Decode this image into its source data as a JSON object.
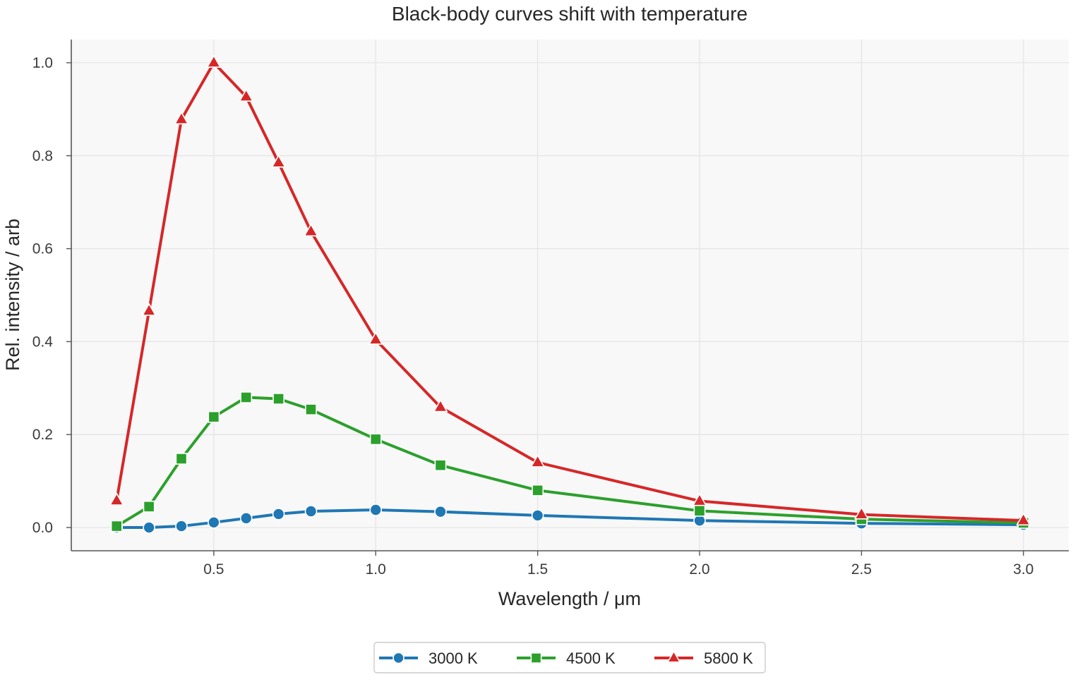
{
  "chart_data": {
    "type": "line",
    "title": "Black-body curves shift with temperature",
    "xlabel": "Wavelength / μm",
    "ylabel": "Rel. intensity / arb",
    "x": [
      0.2,
      0.3,
      0.4,
      0.5,
      0.6,
      0.7,
      0.8,
      1.0,
      1.2,
      1.5,
      2.0,
      2.5,
      3.0
    ],
    "series": [
      {
        "name": "3000 K",
        "color": "#1f77b4",
        "marker": "circle",
        "values": [
          0.0,
          0.0,
          0.003,
          0.011,
          0.02,
          0.029,
          0.035,
          0.038,
          0.034,
          0.026,
          0.015,
          0.009,
          0.006
        ]
      },
      {
        "name": "4500 K",
        "color": "#2ca02c",
        "marker": "square",
        "values": [
          0.003,
          0.045,
          0.148,
          0.238,
          0.28,
          0.277,
          0.254,
          0.19,
          0.134,
          0.08,
          0.036,
          0.018,
          0.01
        ]
      },
      {
        "name": "5800 K",
        "color": "#d62728",
        "marker": "triangle",
        "values": [
          0.058,
          0.466,
          0.878,
          1.0,
          0.927,
          0.785,
          0.637,
          0.404,
          0.259,
          0.14,
          0.057,
          0.028,
          0.015
        ]
      }
    ],
    "xlim": [
      0.06,
      3.14
    ],
    "ylim": [
      -0.05,
      1.05
    ],
    "xticks": [
      0.5,
      1.0,
      1.5,
      2.0,
      2.5,
      3.0
    ],
    "xtick_labels": [
      "0.5",
      "1.0",
      "1.5",
      "2.0",
      "2.5",
      "3.0"
    ],
    "yticks": [
      0.0,
      0.2,
      0.4,
      0.6,
      0.8,
      1.0
    ],
    "ytick_labels": [
      "0.0",
      "0.2",
      "0.4",
      "0.6",
      "0.8",
      "1.0"
    ],
    "grid": true,
    "legend_position": "bottom-center",
    "background_color": "#f8f8f8",
    "grid_color": "#e4e4e4",
    "axis_color": "#555555"
  }
}
